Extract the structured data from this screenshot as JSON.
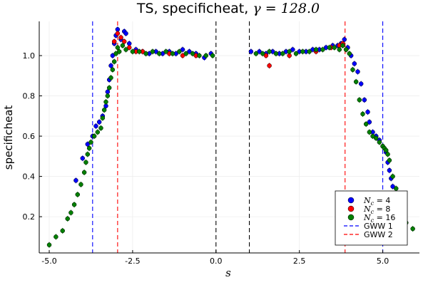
{
  "chart_data": {
    "type": "scatter",
    "title": {
      "prefix": "TS, specificheat, ",
      "symbol": "γ",
      "suffix": " = 128.0"
    },
    "xlabel": "s",
    "ylabel": "specificheat",
    "xlim": [
      -5.3,
      6.1
    ],
    "ylim": [
      0.02,
      1.17
    ],
    "xticks": [
      -5.0,
      -2.5,
      0.0,
      2.5,
      5.0
    ],
    "xtick_labels": [
      "-5.0",
      "-2.5",
      "0.0",
      "2.5",
      "5.0"
    ],
    "yticks": [
      0.2,
      0.4,
      0.6,
      0.8,
      1.0
    ],
    "ytick_labels": [
      "0.2",
      "0.4",
      "0.6",
      "0.8",
      "1.0"
    ],
    "grid": true,
    "legend_position": "bottom-right",
    "series": [
      {
        "symbol": "N",
        "subscript": "c",
        "value": " = 4",
        "color": "#0000ff",
        "points": [
          [
            -4.2,
            0.38
          ],
          [
            -4.0,
            0.49
          ],
          [
            -3.85,
            0.56
          ],
          [
            -3.7,
            0.6
          ],
          [
            -3.6,
            0.65
          ],
          [
            -3.5,
            0.67
          ],
          [
            -3.4,
            0.7
          ],
          [
            -3.3,
            0.75
          ],
          [
            -3.25,
            0.82
          ],
          [
            -3.2,
            0.88
          ],
          [
            -3.15,
            0.95
          ],
          [
            -3.1,
            1.0
          ],
          [
            -3.05,
            1.06
          ],
          [
            -3.0,
            1.1
          ],
          [
            -2.95,
            1.13
          ],
          [
            -2.85,
            1.08
          ],
          [
            -2.75,
            1.12
          ],
          [
            -2.7,
            1.11
          ],
          [
            -2.6,
            1.06
          ],
          [
            -2.4,
            1.03
          ],
          [
            -2.2,
            1.02
          ],
          [
            -2.0,
            1.01
          ],
          [
            -1.8,
            1.02
          ],
          [
            -1.6,
            1.01
          ],
          [
            -1.4,
            1.02
          ],
          [
            -1.2,
            1.01
          ],
          [
            -1.0,
            1.03
          ],
          [
            -0.8,
            1.02
          ],
          [
            -0.6,
            1.01
          ],
          [
            -0.35,
            0.99
          ],
          [
            -0.15,
            1.01
          ],
          [
            1.05,
            1.02
          ],
          [
            1.3,
            1.02
          ],
          [
            1.5,
            1.01
          ],
          [
            1.7,
            1.02
          ],
          [
            1.9,
            1.01
          ],
          [
            2.1,
            1.02
          ],
          [
            2.3,
            1.03
          ],
          [
            2.5,
            1.02
          ],
          [
            2.7,
            1.02
          ],
          [
            2.9,
            1.03
          ],
          [
            3.1,
            1.03
          ],
          [
            3.3,
            1.04
          ],
          [
            3.5,
            1.05
          ],
          [
            3.65,
            1.05
          ],
          [
            3.75,
            1.06
          ],
          [
            3.85,
            1.08
          ],
          [
            3.95,
            1.04
          ],
          [
            4.05,
            1.0
          ],
          [
            4.15,
            0.96
          ],
          [
            4.25,
            0.92
          ],
          [
            4.35,
            0.86
          ],
          [
            4.45,
            0.78
          ],
          [
            4.55,
            0.72
          ],
          [
            4.6,
            0.67
          ],
          [
            4.7,
            0.62
          ],
          [
            4.8,
            0.6
          ],
          [
            4.9,
            0.58
          ],
          [
            5.0,
            0.55
          ],
          [
            5.1,
            0.52
          ],
          [
            5.15,
            0.47
          ],
          [
            5.2,
            0.43
          ],
          [
            5.25,
            0.39
          ],
          [
            5.3,
            0.35
          ],
          [
            5.35,
            0.31
          ]
        ]
      },
      {
        "symbol": "N",
        "subscript": "c",
        "value": " = 8",
        "color": "#ff0000",
        "points": [
          [
            -3.05,
            1.07
          ],
          [
            -2.95,
            1.11
          ],
          [
            -2.85,
            1.09
          ],
          [
            -2.75,
            1.07
          ],
          [
            -2.6,
            1.04
          ],
          [
            -2.4,
            1.02
          ],
          [
            -2.2,
            1.02
          ],
          [
            -1.4,
            1.01
          ],
          [
            -1.0,
            1.0
          ],
          [
            -0.6,
            1.0
          ],
          [
            1.5,
            1.0
          ],
          [
            1.6,
            0.95
          ],
          [
            2.2,
            1.0
          ],
          [
            3.0,
            1.02
          ],
          [
            3.45,
            1.04
          ],
          [
            3.7,
            1.05
          ],
          [
            3.8,
            1.06
          ],
          [
            3.9,
            1.03
          ]
        ]
      },
      {
        "symbol": "N",
        "subscript": "c",
        "value": " = 16",
        "color": "#008000",
        "points": [
          [
            -5.0,
            0.06
          ],
          [
            -4.8,
            0.1
          ],
          [
            -4.6,
            0.13
          ],
          [
            -4.45,
            0.19
          ],
          [
            -4.35,
            0.22
          ],
          [
            -4.25,
            0.26
          ],
          [
            -4.15,
            0.31
          ],
          [
            -4.05,
            0.36
          ],
          [
            -3.95,
            0.42
          ],
          [
            -3.9,
            0.47
          ],
          [
            -3.85,
            0.51
          ],
          [
            -3.8,
            0.54
          ],
          [
            -3.75,
            0.57
          ],
          [
            -3.65,
            0.6
          ],
          [
            -3.55,
            0.62
          ],
          [
            -3.45,
            0.64
          ],
          [
            -3.4,
            0.69
          ],
          [
            -3.35,
            0.73
          ],
          [
            -3.3,
            0.77
          ],
          [
            -3.25,
            0.8
          ],
          [
            -3.2,
            0.84
          ],
          [
            -3.15,
            0.89
          ],
          [
            -3.1,
            0.93
          ],
          [
            -3.05,
            0.97
          ],
          [
            -3.0,
            1.01
          ],
          [
            -2.95,
            1.04
          ],
          [
            -2.9,
            1.02
          ],
          [
            -2.8,
            1.05
          ],
          [
            -2.7,
            1.03
          ],
          [
            -2.5,
            1.02
          ],
          [
            -2.3,
            1.02
          ],
          [
            -2.1,
            1.01
          ],
          [
            -1.9,
            1.02
          ],
          [
            -1.7,
            1.01
          ],
          [
            -1.5,
            1.02
          ],
          [
            -1.3,
            1.01
          ],
          [
            -1.1,
            1.02
          ],
          [
            -0.9,
            1.01
          ],
          [
            -0.7,
            1.01
          ],
          [
            -0.5,
            1.0
          ],
          [
            -0.3,
            1.0
          ],
          [
            -0.1,
            1.0
          ],
          [
            1.2,
            1.01
          ],
          [
            1.4,
            1.01
          ],
          [
            1.6,
            1.02
          ],
          [
            1.8,
            1.01
          ],
          [
            2.0,
            1.01
          ],
          [
            2.2,
            1.02
          ],
          [
            2.4,
            1.01
          ],
          [
            2.6,
            1.02
          ],
          [
            2.8,
            1.02
          ],
          [
            3.0,
            1.03
          ],
          [
            3.2,
            1.03
          ],
          [
            3.4,
            1.04
          ],
          [
            3.55,
            1.04
          ],
          [
            3.7,
            1.03
          ],
          [
            3.8,
            1.05
          ],
          [
            3.9,
            1.03
          ],
          [
            4.0,
            1.01
          ],
          [
            4.1,
            0.93
          ],
          [
            4.2,
            0.87
          ],
          [
            4.3,
            0.78
          ],
          [
            4.4,
            0.71
          ],
          [
            4.5,
            0.66
          ],
          [
            4.6,
            0.62
          ],
          [
            4.7,
            0.6
          ],
          [
            4.8,
            0.59
          ],
          [
            4.9,
            0.57
          ],
          [
            5.0,
            0.55
          ],
          [
            5.05,
            0.54
          ],
          [
            5.1,
            0.53
          ],
          [
            5.15,
            0.51
          ],
          [
            5.2,
            0.48
          ],
          [
            5.3,
            0.4
          ],
          [
            5.4,
            0.34
          ],
          [
            5.5,
            0.26
          ],
          [
            5.6,
            0.2
          ],
          [
            5.7,
            0.17
          ],
          [
            5.9,
            0.14
          ]
        ]
      }
    ],
    "reference_lines": [
      {
        "label": "GWW 1",
        "color": "#0000ff",
        "dash": "dashed",
        "x": [
          -3.7,
          5.0
        ]
      },
      {
        "label": "GWW 2",
        "color": "#ff0000",
        "dash": "dashed",
        "x": [
          -2.95,
          3.87
        ]
      },
      {
        "label": "",
        "color": "#000000",
        "dash": "dashed",
        "x": [
          0.0,
          1.0
        ]
      }
    ]
  }
}
